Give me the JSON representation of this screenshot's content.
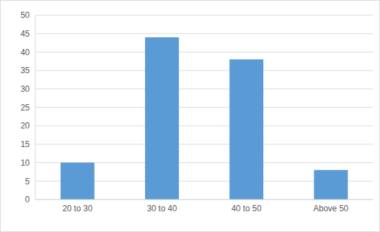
{
  "chart_data": {
    "type": "bar",
    "categories": [
      "20 to 30",
      "30 to 40",
      "40 to 50",
      "Above 50"
    ],
    "values": [
      10,
      44,
      38,
      8
    ],
    "color": "#5b9bd5",
    "ylim": [
      0,
      50
    ],
    "yticks": [
      0,
      5,
      10,
      15,
      20,
      25,
      30,
      35,
      40,
      45,
      50
    ],
    "grid": true
  }
}
